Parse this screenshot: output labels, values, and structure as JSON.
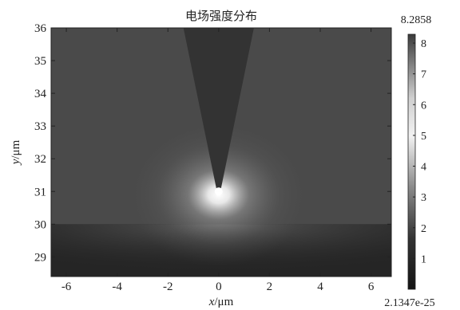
{
  "chart_data": {
    "type": "heatmap",
    "title": "电场强度分布",
    "xlabel": "x/μm",
    "xlabel_italic": "x",
    "xlabel_unit": "/μm",
    "ylabel": "y/μm",
    "ylabel_italic": "y",
    "ylabel_unit": "/μm",
    "xlim": [
      -6.6,
      6.8
    ],
    "ylim": [
      28.4,
      36
    ],
    "xticks": [
      -6,
      -4,
      -2,
      0,
      2,
      4,
      6
    ],
    "xtick_labels": [
      "-6",
      "-4",
      "-2",
      "0",
      "2",
      "4",
      "6"
    ],
    "yticks": [
      29,
      30,
      31,
      32,
      33,
      34,
      35,
      36
    ],
    "ytick_labels": [
      "29",
      "30",
      "31",
      "32",
      "33",
      "34",
      "35",
      "36"
    ],
    "colorbar": {
      "max_label": "8.2858",
      "min_label": "2.1347e-25",
      "max": 8.2858,
      "min": 0,
      "ticks": [
        1,
        2,
        3,
        4,
        5,
        6,
        7,
        8
      ],
      "tick_labels": [
        "1",
        "2",
        "3",
        "4",
        "5",
        "6",
        "7",
        "8"
      ],
      "colormap": "grayscale"
    },
    "features": {
      "substrate_top_y": 30.0,
      "tip_apex_x": 0.0,
      "tip_apex_y": 31.1,
      "tip_top_y": 36.0,
      "tip_top_x_range": [
        -1.4,
        1.4
      ],
      "hotspot_center": [
        0.0,
        30.9
      ],
      "hotspot_peak_value": 8.2858
    },
    "grid": false
  }
}
